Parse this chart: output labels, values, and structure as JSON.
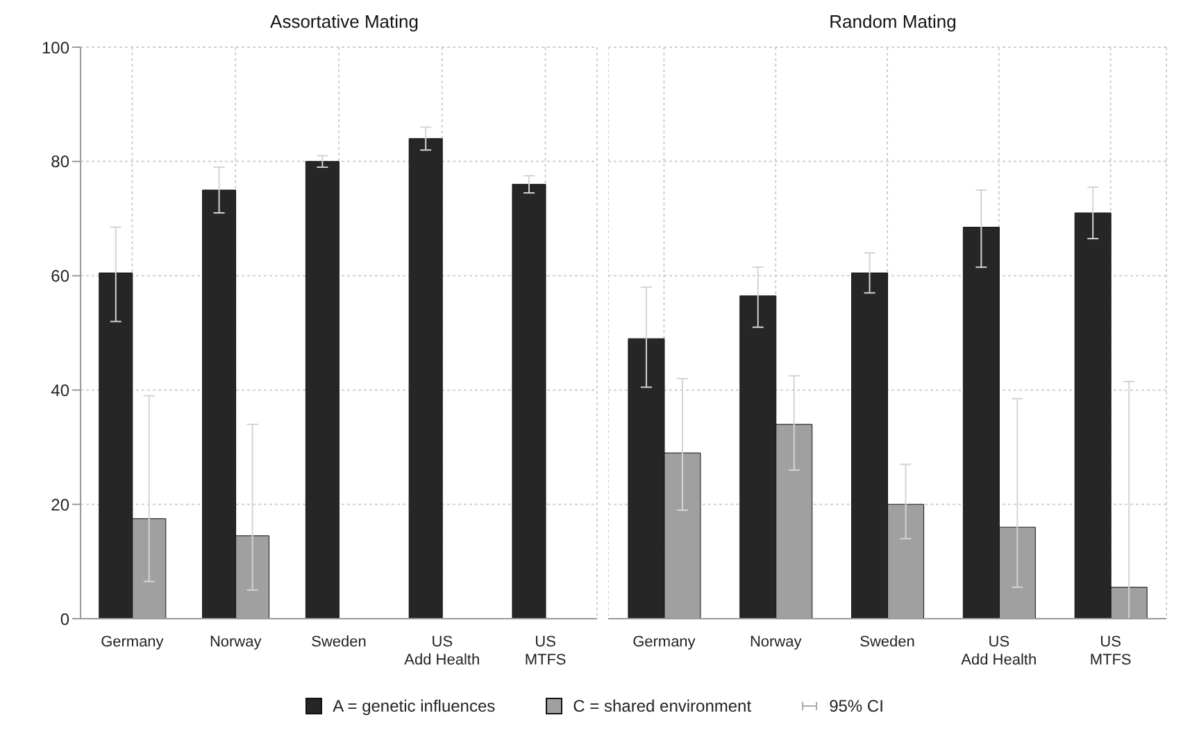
{
  "chart_data": [
    {
      "type": "bar",
      "title": "Assortative Mating",
      "categories": [
        "Germany",
        "Norway",
        "Sweden",
        "US\nAdd Health",
        "US\nMTFS"
      ],
      "series": [
        {
          "name": "A = genetic influences",
          "color": "#262626",
          "values": [
            60.5,
            75,
            80,
            84,
            76
          ],
          "errors": [
            [
              52,
              68.5
            ],
            [
              71,
              79
            ],
            [
              79,
              81
            ],
            [
              82,
              86
            ],
            [
              74.5,
              77.5
            ]
          ]
        },
        {
          "name": "C = shared environment",
          "color": "#a0a0a0",
          "values": [
            17.5,
            14.5,
            null,
            null,
            null
          ],
          "errors": [
            [
              6.5,
              39
            ],
            [
              5,
              34
            ],
            null,
            null,
            null
          ]
        }
      ],
      "ylim": [
        0,
        100
      ],
      "yticks": [
        0,
        20,
        40,
        60,
        80,
        100
      ],
      "grid": true,
      "legend": "bottom",
      "annotations": [
        "95% CI"
      ]
    },
    {
      "type": "bar",
      "title": "Random Mating",
      "categories": [
        "Germany",
        "Norway",
        "Sweden",
        "US\nAdd Health",
        "US\nMTFS"
      ],
      "series": [
        {
          "color": "#262626",
          "values": [
            49,
            56.5,
            60.5,
            68.5,
            71
          ],
          "errors": [
            [
              40.5,
              58
            ],
            [
              51,
              61.5
            ],
            [
              57,
              64
            ],
            [
              61.5,
              75
            ],
            [
              66.5,
              75.5
            ]
          ]
        },
        {
          "color": "#a0a0a0",
          "values": [
            29,
            34,
            20,
            16,
            5.5
          ],
          "errors": [
            [
              19,
              42
            ],
            [
              26,
              42.5
            ],
            [
              14,
              27
            ],
            [
              5.5,
              38.5
            ],
            [
              0,
              41.5
            ]
          ]
        }
      ],
      "ylim": [
        0,
        100
      ],
      "yticks": [
        0,
        20,
        40,
        60,
        80,
        100
      ],
      "grid": true,
      "tick_labels": "x"
    }
  ]
}
